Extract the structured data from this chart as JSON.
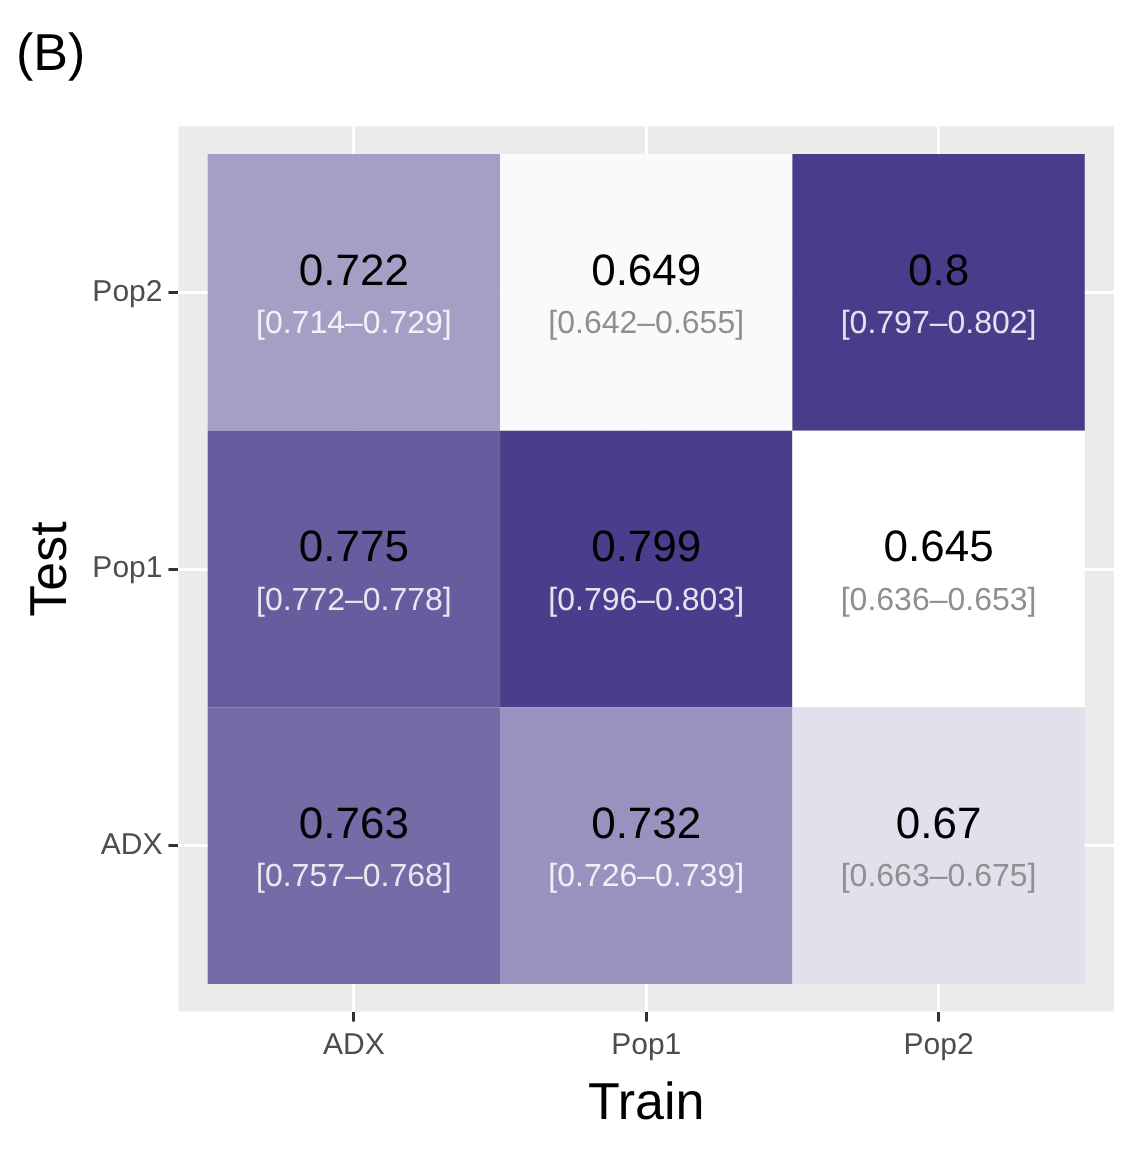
{
  "chart_data": {
    "type": "heatmap",
    "title": "(B)",
    "xlabel": "Train",
    "ylabel": "Test",
    "categories": [
      "ADX",
      "Pop1",
      "Pop2"
    ],
    "y_categories": [
      "Pop2",
      "Pop1",
      "ADX"
    ],
    "cells": [
      [
        0.722,
        0.649,
        0.8
      ],
      [
        0.775,
        0.799,
        0.645
      ],
      [
        0.763,
        0.732,
        0.67
      ]
    ],
    "data_labels": true,
    "annotations": [
      "[0.714–0.729]",
      "[0.642–0.655]",
      "[0.797–0.802]",
      "[0.772–0.778]",
      "[0.796–0.803]",
      "[0.636–0.653]",
      "[0.757–0.768]",
      "[0.726–0.739]",
      "[0.663–0.675]"
    ],
    "grid": true
  }
}
